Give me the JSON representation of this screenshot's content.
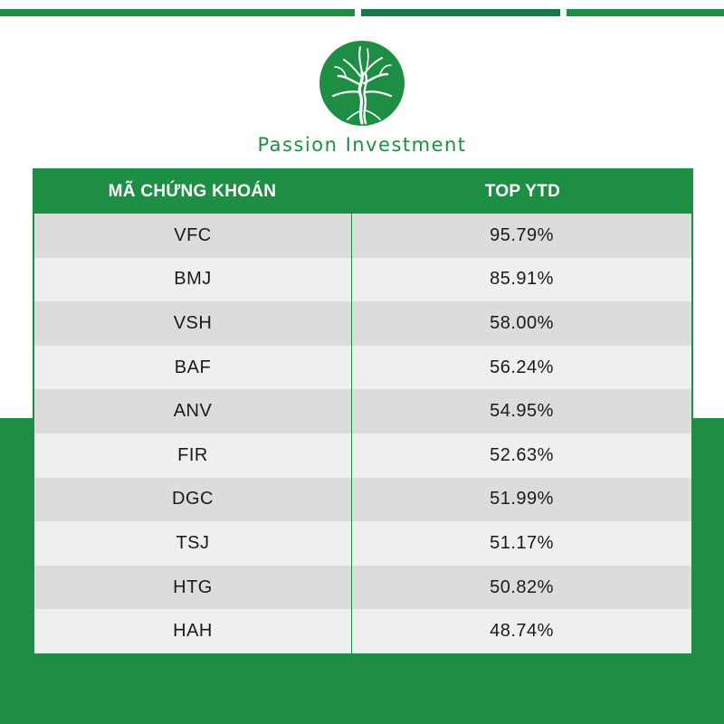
{
  "brand": {
    "name": "Passion Investment",
    "colors": {
      "primary": "#1e8e44",
      "accent": "#167a4b",
      "row_dark": "#dcdcdc",
      "row_light": "#efefef"
    },
    "logo_icon": "tree-logo-icon"
  },
  "table": {
    "headers": [
      "MÃ CHỨNG KHOÁN",
      "TOP YTD"
    ],
    "rows": [
      {
        "code": "VFC",
        "ytd": "95.79%"
      },
      {
        "code": "BMJ",
        "ytd": "85.91%"
      },
      {
        "code": "VSH",
        "ytd": "58.00%"
      },
      {
        "code": "BAF",
        "ytd": "56.24%"
      },
      {
        "code": "ANV",
        "ytd": "54.95%"
      },
      {
        "code": "FIR",
        "ytd": "52.63%"
      },
      {
        "code": "DGC",
        "ytd": "51.99%"
      },
      {
        "code": "TSJ",
        "ytd": "51.17%"
      },
      {
        "code": "HTG",
        "ytd": "50.82%"
      },
      {
        "code": "HAH",
        "ytd": "48.74%"
      }
    ]
  }
}
